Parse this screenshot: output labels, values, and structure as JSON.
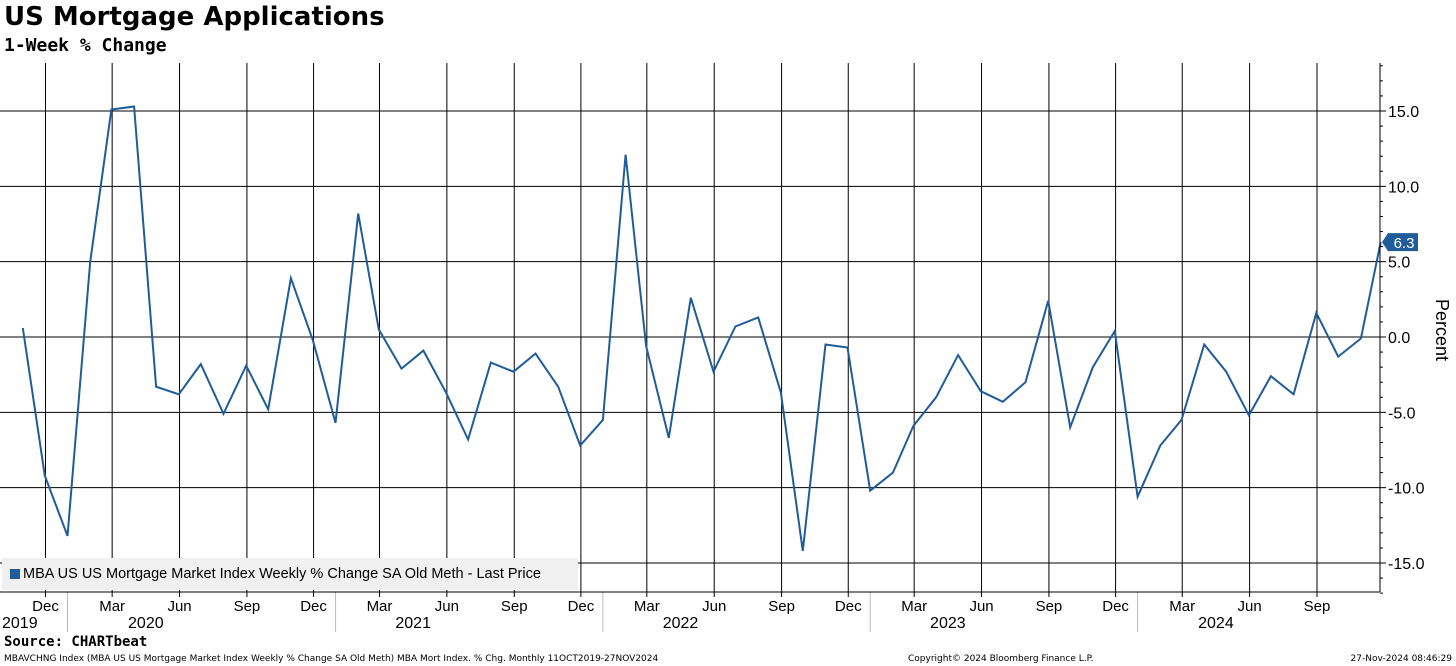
{
  "header": {
    "title": "US Mortgage Applications",
    "subtitle": "1-Week % Change"
  },
  "footer": {
    "source": "Source: CHARTbeat",
    "description": "MBAVCHNG Index (MBA US US Mortgage Market Index Weekly % Change SA Old Meth) MBA Mort Index. % Chg.  Monthly 11OCT2019-27NOV2024",
    "copyright": "Copyright© 2024 Bloomberg Finance L.P.",
    "timestamp": "27-Nov-2024 08:46:29"
  },
  "colors": {
    "series": "#1f5c99",
    "grid": "#000000",
    "legend_bg": "#f0f0f0"
  },
  "chart_data": {
    "type": "line",
    "ylabel": "Percent",
    "ylim": [
      -17,
      18
    ],
    "yticks": [
      15.0,
      10.0,
      5.0,
      0.0,
      -5.0,
      -10.0,
      -15.0
    ],
    "ytick_labels": [
      "15.0",
      "10.0",
      "5.0",
      "0.0",
      "-5.0",
      "-10.0",
      "-15.0"
    ],
    "y_axis_side": "right",
    "grid": true,
    "legend_position": "bottom-left",
    "last_value_label": "6.3",
    "month_ticks": [
      {
        "label": "Dec",
        "date": "2019-12-01"
      },
      {
        "label": "Mar",
        "date": "2020-03-01"
      },
      {
        "label": "Jun",
        "date": "2020-06-01"
      },
      {
        "label": "Sep",
        "date": "2020-09-01"
      },
      {
        "label": "Dec",
        "date": "2020-12-01"
      },
      {
        "label": "Mar",
        "date": "2021-03-01"
      },
      {
        "label": "Jun",
        "date": "2021-06-01"
      },
      {
        "label": "Sep",
        "date": "2021-09-01"
      },
      {
        "label": "Dec",
        "date": "2021-12-01"
      },
      {
        "label": "Mar",
        "date": "2022-03-01"
      },
      {
        "label": "Jun",
        "date": "2022-06-01"
      },
      {
        "label": "Sep",
        "date": "2022-09-01"
      },
      {
        "label": "Dec",
        "date": "2022-12-01"
      },
      {
        "label": "Mar",
        "date": "2023-03-01"
      },
      {
        "label": "Jun",
        "date": "2023-06-01"
      },
      {
        "label": "Sep",
        "date": "2023-09-01"
      },
      {
        "label": "Dec",
        "date": "2023-12-01"
      },
      {
        "label": "Mar",
        "date": "2024-03-01"
      },
      {
        "label": "Jun",
        "date": "2024-06-01"
      },
      {
        "label": "Sep",
        "date": "2024-09-01"
      }
    ],
    "year_ticks": [
      {
        "label": "2019",
        "date": "2019-10-01"
      },
      {
        "label": "2020",
        "date": "2020-04-16"
      },
      {
        "label": "2021",
        "date": "2021-04-16"
      },
      {
        "label": "2022",
        "date": "2022-04-16"
      },
      {
        "label": "2023",
        "date": "2023-04-16"
      },
      {
        "label": "2024",
        "date": "2024-04-16"
      }
    ],
    "year_separators": [
      "2019-12-31",
      "2020-12-31",
      "2021-12-31",
      "2022-12-31",
      "2023-12-31"
    ],
    "series": [
      {
        "name": "MBA US US Mortgage Market Index Weekly % Change SA Old Meth - Last Price",
        "x": [
          "2019-10-31",
          "2019-11-30",
          "2019-12-31",
          "2020-01-31",
          "2020-02-29",
          "2020-03-31",
          "2020-04-30",
          "2020-05-31",
          "2020-06-30",
          "2020-07-31",
          "2020-08-31",
          "2020-09-30",
          "2020-10-31",
          "2020-11-30",
          "2020-12-31",
          "2021-01-31",
          "2021-02-28",
          "2021-03-31",
          "2021-04-30",
          "2021-05-31",
          "2021-06-30",
          "2021-07-31",
          "2021-08-31",
          "2021-09-30",
          "2021-10-31",
          "2021-11-30",
          "2021-12-31",
          "2022-01-31",
          "2022-02-28",
          "2022-03-31",
          "2022-04-30",
          "2022-05-31",
          "2022-06-30",
          "2022-07-31",
          "2022-08-31",
          "2022-09-30",
          "2022-10-31",
          "2022-11-30",
          "2022-12-31",
          "2023-01-31",
          "2023-02-28",
          "2023-03-31",
          "2023-04-30",
          "2023-05-31",
          "2023-06-30",
          "2023-07-31",
          "2023-08-31",
          "2023-09-30",
          "2023-10-31",
          "2023-11-30",
          "2023-12-31",
          "2024-01-31",
          "2024-02-29",
          "2024-03-31",
          "2024-04-30",
          "2024-05-31",
          "2024-06-30",
          "2024-07-31",
          "2024-08-31",
          "2024-09-30",
          "2024-10-31",
          "2024-11-27"
        ],
        "y": [
          0.6,
          -9.2,
          -13.2,
          5.0,
          15.1,
          15.3,
          -3.3,
          -3.8,
          -1.8,
          -5.1,
          -1.9,
          -4.8,
          3.9,
          -0.2,
          -5.7,
          8.2,
          0.5,
          -2.1,
          -0.9,
          -3.7,
          -6.8,
          -1.7,
          -2.3,
          -1.1,
          -3.3,
          -7.2,
          -5.5,
          12.1,
          -0.6,
          -6.7,
          2.6,
          -2.3,
          0.7,
          1.3,
          -3.7,
          -14.2,
          -0.5,
          -0.7,
          -10.2,
          -9.0,
          -5.9,
          -4.0,
          -1.2,
          -3.6,
          -4.3,
          -3.0,
          2.4,
          -6.0,
          -2.0,
          0.4,
          -10.6,
          -7.2,
          -5.5,
          -0.5,
          -2.3,
          -5.2,
          -2.6,
          -3.8,
          1.6,
          -1.3,
          -0.1,
          6.3
        ]
      }
    ]
  }
}
